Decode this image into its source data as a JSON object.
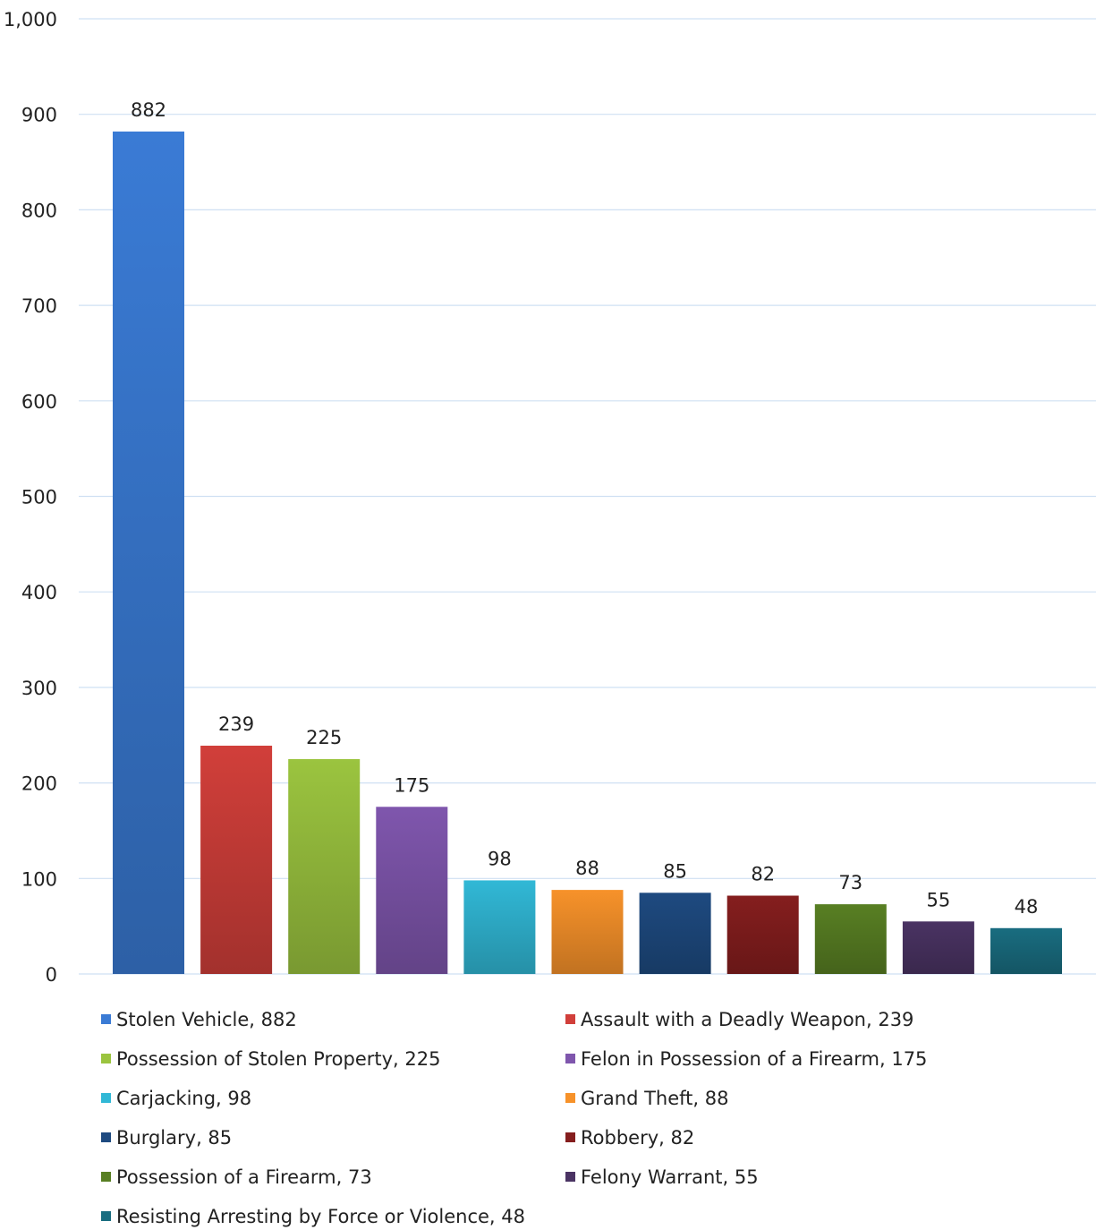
{
  "chart_data": {
    "type": "bar",
    "title": "",
    "xlabel": "",
    "ylabel": "",
    "ylim": [
      0,
      1000
    ],
    "yticks": [
      0,
      100,
      200,
      300,
      400,
      500,
      600,
      700,
      800,
      900,
      1000
    ],
    "ytick_labels": [
      "0",
      "100",
      "200",
      "300",
      "400",
      "500",
      "600",
      "700",
      "800",
      "900",
      "1,000"
    ],
    "grid": true,
    "legend_position": "bottom",
    "categories": [
      "Stolen Vehicle",
      "Assault with a Deadly Weapon",
      "Possession of Stolen Property",
      "Felon in Possession of a Firearm",
      "Carjacking",
      "Grand Theft",
      "Burglary",
      "Robbery",
      "Possession of a Firearm",
      "Felony Warrant",
      "Resisting Arresting by Force or Violence"
    ],
    "values": [
      882,
      239,
      225,
      175,
      98,
      88,
      85,
      82,
      73,
      55,
      48
    ],
    "colors": [
      "#3a7bd5",
      "#d13f3a",
      "#9bc43f",
      "#7f56ad",
      "#31b8d6",
      "#f7922a",
      "#1e4a80",
      "#851e1e",
      "#587f23",
      "#4a3363",
      "#196d80"
    ],
    "legend": [
      "Stolen Vehicle, 882",
      "Assault with a Deadly Weapon, 239",
      "Possession of Stolen Property, 225",
      "Felon in Possession of a Firearm, 175",
      "Carjacking, 98",
      "Grand Theft, 88",
      "Burglary, 85",
      "Robbery, 82",
      "Possession of a Firearm, 73",
      "Felony Warrant, 55",
      "Resisting Arresting by Force or Violence, 48"
    ]
  }
}
